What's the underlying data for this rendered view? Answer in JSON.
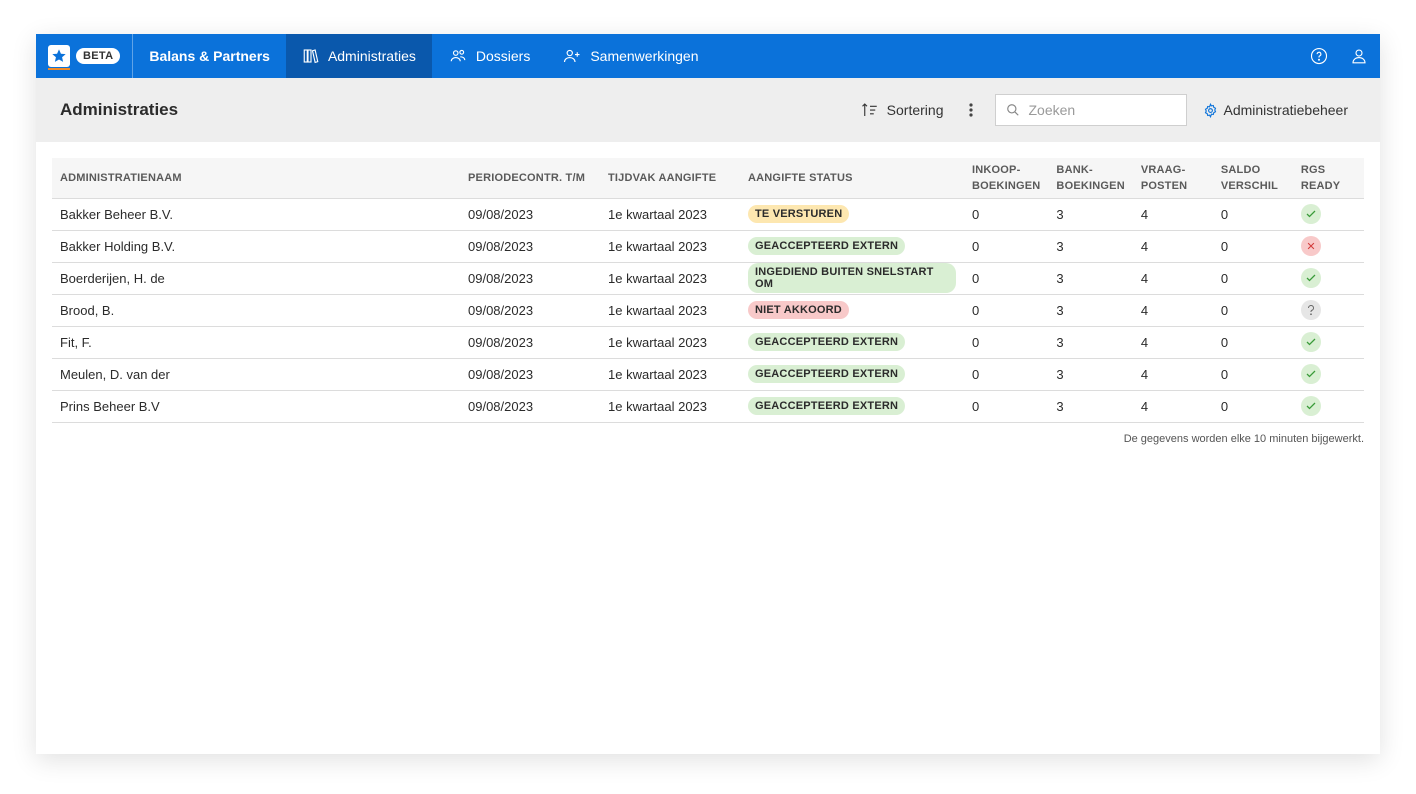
{
  "header": {
    "beta_label": "BETA",
    "org_name": "Balans & Partners",
    "nav": [
      {
        "label": "Administraties",
        "icon": "books-icon",
        "active": true
      },
      {
        "label": "Dossiers",
        "icon": "users-icon",
        "active": false
      },
      {
        "label": "Samenwerkingen",
        "icon": "user-plus-icon",
        "active": false
      }
    ],
    "right_icons": [
      "help-icon",
      "user-icon"
    ]
  },
  "subheader": {
    "title": "Administraties",
    "sort_label": "Sortering",
    "search_placeholder": "Zoeken",
    "admin_link": "Administratiebeheer"
  },
  "table": {
    "columns": [
      {
        "line1": "ADMINISTRATIENAAM",
        "line2": ""
      },
      {
        "line1": "PERIODECONTR. T/M",
        "line2": ""
      },
      {
        "line1": "TIJDVAK AANGIFTE",
        "line2": ""
      },
      {
        "line1": "AANGIFTE STATUS",
        "line2": ""
      },
      {
        "line1": "INKOOP-",
        "line2": "BOEKINGEN"
      },
      {
        "line1": "BANK-",
        "line2": "BOEKINGEN"
      },
      {
        "line1": "VRAAG-",
        "line2": "POSTEN"
      },
      {
        "line1": "SALDO",
        "line2": "VERSCHIL"
      },
      {
        "line1": "RGS",
        "line2": "READY"
      }
    ],
    "rows": [
      {
        "name": "Bakker Beheer B.V.",
        "period": "09/08/2023",
        "tijdvak": "1e kwartaal 2023",
        "status": "TE VERSTUREN",
        "status_kind": "warning",
        "inkoop": "0",
        "bank": "3",
        "vraag": "4",
        "saldo": "0",
        "rgs": "ok"
      },
      {
        "name": "Bakker Holding B.V.",
        "period": "09/08/2023",
        "tijdvak": "1e kwartaal 2023",
        "status": "GEACCEPTEERD EXTERN",
        "status_kind": "success",
        "inkoop": "0",
        "bank": "3",
        "vraag": "4",
        "saldo": "0",
        "rgs": "error"
      },
      {
        "name": "Boerderijen, H. de",
        "period": "09/08/2023",
        "tijdvak": "1e kwartaal 2023",
        "status": "INGEDIEND BUITEN SNELSTART OM",
        "status_kind": "success",
        "inkoop": "0",
        "bank": "3",
        "vraag": "4",
        "saldo": "0",
        "rgs": "ok"
      },
      {
        "name": "Brood, B.",
        "period": "09/08/2023",
        "tijdvak": "1e kwartaal 2023",
        "status": "NIET AKKOORD",
        "status_kind": "danger",
        "inkoop": "0",
        "bank": "3",
        "vraag": "4",
        "saldo": "0",
        "rgs": "unknown"
      },
      {
        "name": "Fit, F.",
        "period": "09/08/2023",
        "tijdvak": "1e kwartaal 2023",
        "status": "GEACCEPTEERD EXTERN",
        "status_kind": "success",
        "inkoop": "0",
        "bank": "3",
        "vraag": "4",
        "saldo": "0",
        "rgs": "ok"
      },
      {
        "name": "Meulen, D. van der",
        "period": "09/08/2023",
        "tijdvak": "1e kwartaal 2023",
        "status": "GEACCEPTEERD EXTERN",
        "status_kind": "success",
        "inkoop": "0",
        "bank": "3",
        "vraag": "4",
        "saldo": "0",
        "rgs": "ok"
      },
      {
        "name": "Prins Beheer B.V",
        "period": "09/08/2023",
        "tijdvak": "1e kwartaal 2023",
        "status": "GEACCEPTEERD EXTERN",
        "status_kind": "success",
        "inkoop": "0",
        "bank": "3",
        "vraag": "4",
        "saldo": "0",
        "rgs": "ok"
      }
    ],
    "footer_note": "De gegevens worden elke 10 minuten bijgewerkt."
  },
  "colors": {
    "primary": "#0b72da",
    "primary_active": "#0a58ac",
    "warning_bg": "#fde7b0",
    "success_bg": "#d9efd3",
    "danger_bg": "#f8c9c9",
    "ok_icon_bg": "#d9efd3",
    "ok_icon_fg": "#3a9b3a",
    "error_icon_bg": "#f8c9c9",
    "error_icon_fg": "#d23a3a",
    "unknown_icon_bg": "#e6e6e6",
    "unknown_icon_fg": "#666666"
  }
}
